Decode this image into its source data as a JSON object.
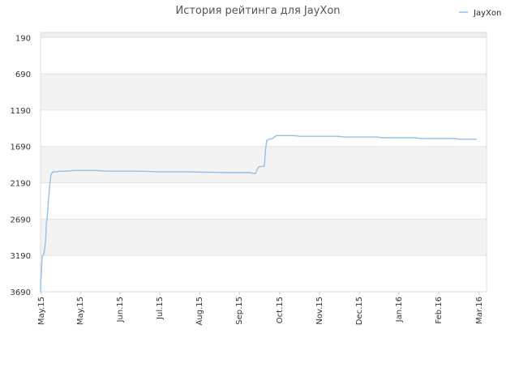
{
  "chart_data": {
    "type": "line",
    "title": "История рейтинга для JayXon",
    "xlabel": "",
    "ylabel": "",
    "y_reversed": true,
    "ylim": [
      190,
      3690
    ],
    "yticks": [
      190,
      690,
      1190,
      1690,
      2190,
      2690,
      3190,
      3690
    ],
    "xticks": [
      "May.15",
      "May.15",
      "Jun.15",
      "Jul.15",
      "Aug.15",
      "Sep.15",
      "Oct.15",
      "Nov.15",
      "Dec.15",
      "Jan.16",
      "Feb.16",
      "Mar.16"
    ],
    "legend_position": "top-right",
    "band_colors": [
      "#eeeeee",
      "#ffffff",
      "#f3f3f3",
      "#ffffff",
      "#f3f3f3",
      "#ffffff",
      "#f3f3f3"
    ],
    "series": [
      {
        "name": "JayXon",
        "color": "#90c0ec",
        "points": [
          [
            0.0,
            3690
          ],
          [
            0.05,
            3530
          ],
          [
            0.15,
            3430
          ],
          [
            0.3,
            3200
          ],
          [
            0.5,
            3180
          ],
          [
            0.65,
            3150
          ],
          [
            0.75,
            3100
          ],
          [
            0.9,
            3000
          ],
          [
            1.0,
            2860
          ],
          [
            1.05,
            2760
          ],
          [
            1.2,
            2670
          ],
          [
            1.35,
            2520
          ],
          [
            1.55,
            2330
          ],
          [
            1.7,
            2190
          ],
          [
            1.85,
            2100
          ],
          [
            2.0,
            2060
          ],
          [
            2.3,
            2040
          ],
          [
            3.0,
            2040
          ],
          [
            3.5,
            2030
          ],
          [
            5.0,
            2030
          ],
          [
            6.0,
            2020
          ],
          [
            10.0,
            2020
          ],
          [
            12.0,
            2030
          ],
          [
            18.0,
            2030
          ],
          [
            22.0,
            2040
          ],
          [
            27.0,
            2040
          ],
          [
            34.0,
            2050
          ],
          [
            38.0,
            2050
          ],
          [
            38.5,
            2060
          ],
          [
            39.0,
            2060
          ],
          [
            39.4,
            1990
          ],
          [
            39.6,
            1970
          ],
          [
            40.6,
            1960
          ],
          [
            40.8,
            1740
          ],
          [
            41.0,
            1610
          ],
          [
            41.4,
            1590
          ],
          [
            42.1,
            1580
          ],
          [
            42.3,
            1560
          ],
          [
            42.5,
            1560
          ],
          [
            42.7,
            1540
          ],
          [
            46.0,
            1540
          ],
          [
            47.0,
            1550
          ],
          [
            54.0,
            1550
          ],
          [
            55.0,
            1560
          ],
          [
            61.0,
            1560
          ],
          [
            62.0,
            1570
          ],
          [
            68.0,
            1570
          ],
          [
            69.0,
            1580
          ],
          [
            75.0,
            1580
          ],
          [
            76.0,
            1590
          ],
          [
            79.0,
            1590
          ]
        ]
      }
    ]
  }
}
